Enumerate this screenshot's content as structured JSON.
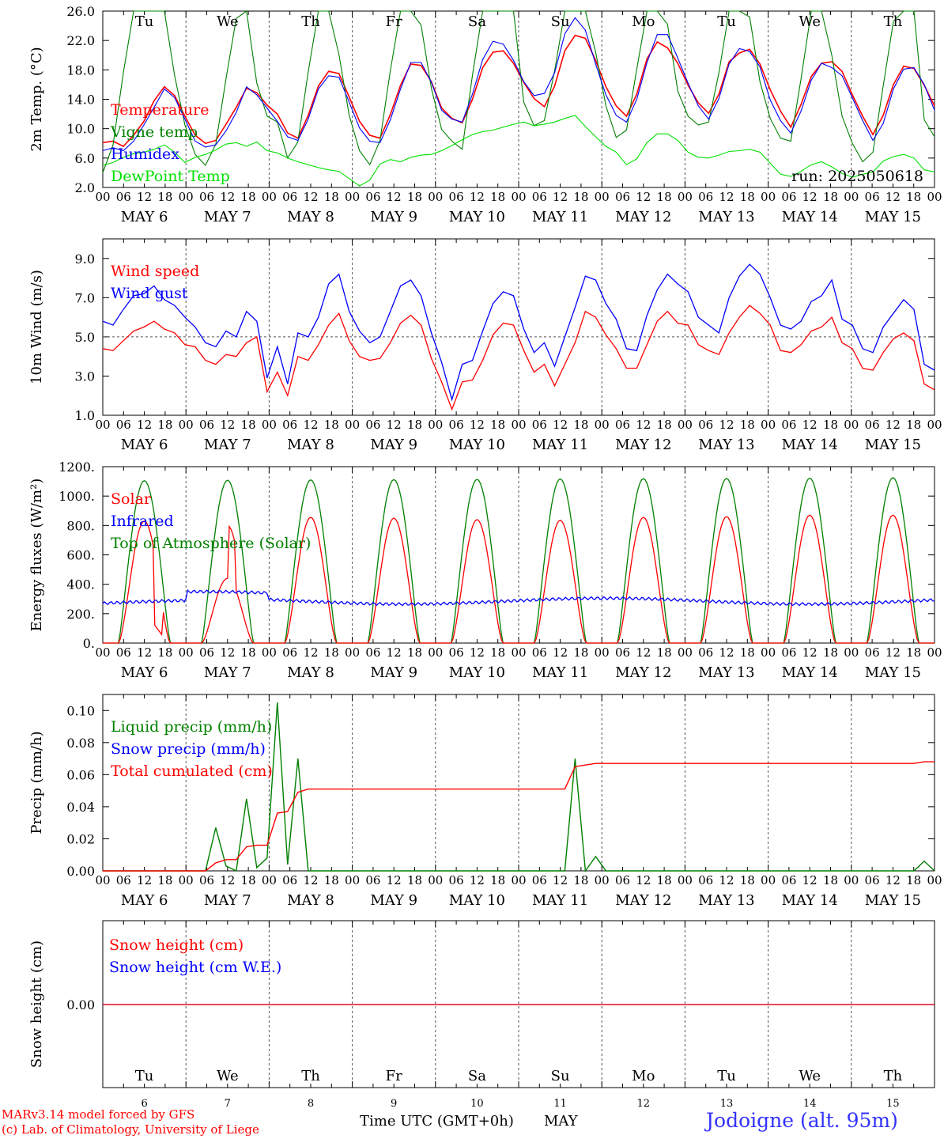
{
  "chart_data": [
    {
      "type": "line",
      "ylabel": "2m Temp. (°C)",
      "ylim": [
        2,
        26
      ],
      "yticks": [
        "2.0",
        "6.0",
        "10.0",
        "14.0",
        "18.0",
        "22.0",
        "26.0"
      ],
      "day_names": [
        "Tu",
        "We",
        "Th",
        "Fr",
        "Sa",
        "Su",
        "Mo",
        "Tu",
        "We",
        "Th"
      ],
      "weekend_color": "#ff0000",
      "annotation": "run: 2025050618",
      "series": [
        {
          "name": "Temperature",
          "color": "#ff0000",
          "values": [
            8.1,
            8.3,
            7.6,
            9.1,
            11.0,
            13.8,
            15.7,
            14.5,
            11.7,
            9.1,
            8.0,
            8.4,
            10.6,
            12.9,
            15.5,
            14.9,
            13.2,
            12.0,
            9.4,
            8.7,
            11.8,
            15.8,
            17.8,
            17.5,
            14.3,
            11.0,
            9.1,
            8.7,
            11.9,
            15.9,
            18.8,
            18.6,
            16.4,
            12.8,
            11.4,
            10.8,
            14.0,
            18.3,
            20.4,
            20.6,
            18.9,
            16.3,
            14.1,
            13.0,
            15.8,
            20.6,
            22.7,
            22.3,
            19.3,
            15.7,
            13.1,
            11.7,
            14.7,
            19.5,
            21.8,
            21.0,
            18.9,
            15.9,
            13.5,
            12.1,
            14.7,
            19.1,
            20.3,
            20.8,
            18.8,
            15.3,
            12.4,
            10.2,
            13.3,
            17.1,
            18.9,
            19.1,
            17.8,
            14.6,
            11.7,
            9.2,
            11.8,
            16.0,
            18.5,
            18.2,
            15.9,
            13.1
          ]
        },
        {
          "name": "Vigne temp",
          "color": "#008000",
          "values": [
            4.0,
            7.8,
            17.6,
            26.0,
            26.0,
            26.0,
            26.0,
            17.2,
            10.5,
            6.5,
            5.0,
            7.9,
            16.8,
            25.0,
            26.0,
            16.2,
            11.7,
            10.9,
            6.0,
            8.2,
            17.7,
            26.0,
            26.0,
            20.1,
            11.8,
            7.0,
            5.1,
            8.4,
            17.9,
            26.0,
            26.0,
            24.1,
            15.5,
            9.9,
            8.3,
            7.2,
            17.3,
            26.0,
            26.0,
            26.0,
            26.0,
            13.6,
            10.4,
            11.1,
            17.9,
            26.0,
            26.0,
            26.0,
            20.4,
            13.1,
            8.8,
            9.8,
            18.1,
            26.0,
            26.0,
            24.2,
            15.1,
            11.7,
            10.5,
            10.9,
            17.6,
            26.0,
            26.0,
            25.2,
            16.4,
            11.4,
            8.7,
            8.3,
            16.8,
            26.0,
            26.0,
            20.0,
            11.7,
            8.0,
            5.5,
            6.8,
            15.8,
            24.6,
            26.0,
            26.0,
            11.2,
            8.9
          ]
        },
        {
          "name": "Humidex",
          "color": "#0000ff",
          "values": [
            7.0,
            7.4,
            7.0,
            8.3,
            10.5,
            12.9,
            15.4,
            14.2,
            11.3,
            8.3,
            7.5,
            7.8,
            9.7,
            12.2,
            15.7,
            14.6,
            12.8,
            11.0,
            8.9,
            8.4,
            11.3,
            15.4,
            17.2,
            17.0,
            13.6,
            10.1,
            8.3,
            8.1,
            11.2,
            15.4,
            19.0,
            19.0,
            16.3,
            12.5,
            11.3,
            10.9,
            14.7,
            19.4,
            21.9,
            21.5,
            19.3,
            16.4,
            14.5,
            14.8,
            17.6,
            22.9,
            25.1,
            23.4,
            18.8,
            14.6,
            11.8,
            10.9,
            14.0,
            19.0,
            22.8,
            22.8,
            19.6,
            16.2,
            13.1,
            11.3,
            14.1,
            18.8,
            20.9,
            20.5,
            18.4,
            13.9,
            11.1,
            9.4,
            12.4,
            16.6,
            18.9,
            18.3,
            17.2,
            14.2,
            11.1,
            8.4,
            10.7,
            15.4,
            18.1,
            18.3,
            16.0,
            12.5
          ]
        },
        {
          "name": "DewPoint Temp",
          "color": "#00e000",
          "values": [
            5.0,
            5.4,
            6.1,
            6.6,
            6.8,
            7.2,
            7.8,
            6.8,
            5.4,
            6.1,
            6.5,
            7.1,
            7.9,
            8.1,
            7.6,
            8.2,
            7.0,
            6.7,
            6.0,
            5.5,
            5.1,
            4.7,
            4.4,
            4.2,
            3.2,
            2.2,
            3.0,
            5.2,
            5.8,
            5.5,
            6.1,
            6.4,
            6.5,
            7.0,
            7.7,
            8.5,
            9.2,
            9.6,
            9.8,
            10.2,
            10.6,
            10.9,
            10.4,
            10.6,
            10.9,
            11.4,
            11.8,
            10.3,
            8.9,
            7.6,
            6.8,
            5.1,
            5.9,
            8.1,
            9.3,
            9.3,
            8.4,
            6.8,
            6.1,
            6.0,
            6.4,
            6.9,
            7.0,
            7.2,
            6.8,
            5.3,
            3.8,
            3.5,
            4.2,
            5.1,
            5.5,
            4.8,
            3.9,
            3.4,
            3.8,
            4.1,
            5.6,
            6.2,
            6.5,
            6.0,
            4.4,
            4.1
          ]
        }
      ]
    },
    {
      "type": "line",
      "ylabel": "10m Wind (m/s)",
      "ylim": [
        1,
        10
      ],
      "yticks": [
        "1.0",
        "3.0",
        "5.0",
        "7.0",
        "9.0"
      ],
      "reference_line": 5.0,
      "series": [
        {
          "name": "Wind speed",
          "color": "#ff0000",
          "values": [
            4.4,
            4.3,
            4.8,
            5.3,
            5.5,
            5.8,
            5.4,
            5.2,
            4.6,
            4.5,
            3.8,
            3.6,
            4.1,
            4.0,
            4.7,
            5.0,
            2.2,
            3.2,
            2.0,
            4.0,
            3.8,
            4.6,
            5.6,
            6.2,
            4.8,
            4.0,
            3.8,
            3.9,
            4.7,
            5.7,
            6.1,
            5.6,
            3.9,
            2.7,
            1.3,
            2.7,
            2.8,
            3.8,
            5.1,
            5.7,
            5.6,
            4.3,
            3.2,
            3.6,
            2.5,
            3.6,
            4.7,
            6.3,
            6.0,
            5.1,
            4.4,
            3.4,
            3.4,
            4.6,
            5.8,
            6.3,
            5.7,
            5.6,
            4.6,
            4.3,
            4.1,
            5.2,
            6.0,
            6.6,
            6.2,
            5.6,
            4.3,
            4.2,
            4.6,
            5.3,
            5.5,
            6.0,
            4.7,
            4.4,
            3.4,
            3.3,
            4.2,
            4.9,
            5.2,
            4.8,
            2.6,
            2.3
          ]
        },
        {
          "name": "Wind gust",
          "color": "#0000ff",
          "values": [
            5.8,
            5.6,
            6.4,
            7.1,
            7.2,
            7.6,
            6.9,
            6.6,
            6.0,
            5.5,
            4.7,
            4.5,
            5.3,
            5.0,
            6.3,
            5.8,
            2.9,
            4.5,
            2.6,
            5.2,
            5.0,
            6.0,
            7.7,
            8.2,
            6.3,
            5.3,
            4.7,
            5.0,
            6.3,
            7.6,
            7.9,
            7.1,
            5.2,
            3.7,
            1.8,
            3.6,
            3.8,
            5.3,
            6.7,
            7.3,
            7.1,
            5.4,
            4.2,
            4.7,
            3.5,
            5.0,
            6.5,
            8.1,
            7.9,
            6.7,
            5.9,
            4.4,
            4.3,
            6.1,
            7.4,
            8.2,
            7.7,
            7.3,
            6.0,
            5.6,
            5.2,
            7.0,
            8.1,
            8.7,
            8.2,
            7.0,
            5.6,
            5.4,
            5.8,
            6.8,
            7.1,
            7.9,
            5.9,
            5.6,
            4.4,
            4.2,
            5.5,
            6.2,
            6.9,
            6.4,
            3.6,
            3.3
          ]
        }
      ]
    },
    {
      "type": "line",
      "ylabel": "Energy fluxes (W/m²)",
      "ylim": [
        0,
        1200
      ],
      "yticks": [
        "0.",
        "200.",
        "400.",
        "600.",
        "800.",
        "1000.",
        "1200."
      ],
      "series": [
        {
          "name": "Solar",
          "color": "#ff0000"
        },
        {
          "name": "Infrared",
          "color": "#0000ff"
        },
        {
          "name": "Top of Atmosphere (Solar)",
          "color": "#008000"
        }
      ]
    },
    {
      "type": "line",
      "ylabel": "Precip (mm/h)",
      "ylim": [
        0,
        0.11
      ],
      "yticks": [
        "0.00",
        "0.02",
        "0.04",
        "0.06",
        "0.08",
        "0.10"
      ],
      "series": [
        {
          "name": "Liquid precip (mm/h)",
          "color": "#008000",
          "values": [
            0,
            0,
            0,
            0,
            0,
            0,
            0,
            0,
            0,
            0,
            0,
            0.027,
            0.003,
            0,
            0.045,
            0.002,
            0.008,
            0.105,
            0.004,
            0.07,
            0,
            0,
            0,
            0,
            0,
            0,
            0,
            0,
            0,
            0,
            0,
            0,
            0,
            0,
            0,
            0,
            0,
            0,
            0,
            0,
            0,
            0,
            0,
            0,
            0,
            0,
            0.07,
            0,
            0.009,
            0,
            0,
            0,
            0,
            0,
            0,
            0,
            0,
            0,
            0,
            0,
            0,
            0,
            0,
            0,
            0,
            0,
            0,
            0,
            0,
            0,
            0,
            0,
            0,
            0,
            0,
            0,
            0,
            0,
            0,
            0,
            0.006,
            0
          ]
        },
        {
          "name": "Snow precip (mm/h)",
          "color": "#0000ff",
          "values": []
        },
        {
          "name": "Total cumulated (cm)",
          "color": "#ff0000",
          "values": [
            0,
            0,
            0,
            0,
            0,
            0,
            0,
            0,
            0,
            0,
            0,
            0.005,
            0.007,
            0.007,
            0.015,
            0.016,
            0.016,
            0.036,
            0.037,
            0.049,
            0.051,
            0.051,
            0.051,
            0.051,
            0.051,
            0.051,
            0.051,
            0.051,
            0.051,
            0.051,
            0.051,
            0.051,
            0.051,
            0.051,
            0.051,
            0.051,
            0.051,
            0.051,
            0.051,
            0.051,
            0.051,
            0.051,
            0.051,
            0.051,
            0.051,
            0.051,
            0.065,
            0.066,
            0.067,
            0.067,
            0.067,
            0.067,
            0.067,
            0.067,
            0.067,
            0.067,
            0.067,
            0.067,
            0.067,
            0.067,
            0.067,
            0.067,
            0.067,
            0.067,
            0.067,
            0.067,
            0.067,
            0.067,
            0.067,
            0.067,
            0.067,
            0.067,
            0.067,
            0.067,
            0.067,
            0.067,
            0.067,
            0.067,
            0.067,
            0.067,
            0.068,
            0.068
          ]
        }
      ]
    },
    {
      "type": "line",
      "ylabel": "Snow height (cm)",
      "yticks": [
        "0.00"
      ],
      "series": [
        {
          "name": "Snow height (cm)",
          "color": "#ff0000",
          "values": [
            0,
            0
          ]
        },
        {
          "name": "Snow height (cm W.E.)",
          "color": "#0000ff",
          "values": [
            0,
            0
          ]
        }
      ]
    }
  ],
  "axis": {
    "hour_ticks": [
      "00",
      "06",
      "12",
      "18"
    ],
    "date_labels": [
      "MAY  6",
      "MAY  7",
      "MAY  8",
      "MAY  9",
      "MAY 10",
      "MAY 11",
      "MAY 12",
      "MAY 13",
      "MAY 14",
      "MAY 15"
    ],
    "bottom_days": [
      "6",
      "7",
      "8",
      "9",
      "10",
      "11",
      "12",
      "13",
      "14",
      "15"
    ],
    "xlabel": "Time UTC (GMT+0h)",
    "month": "MAY"
  },
  "footer": {
    "model": "MARv3.14 model forced by GFS",
    "copyright": "(c) Lab. of Climatology, University of Liege",
    "location": "Jodoigne (alt. 95m)",
    "footer_color": "#ff0000",
    "location_color": "#3333ff"
  }
}
